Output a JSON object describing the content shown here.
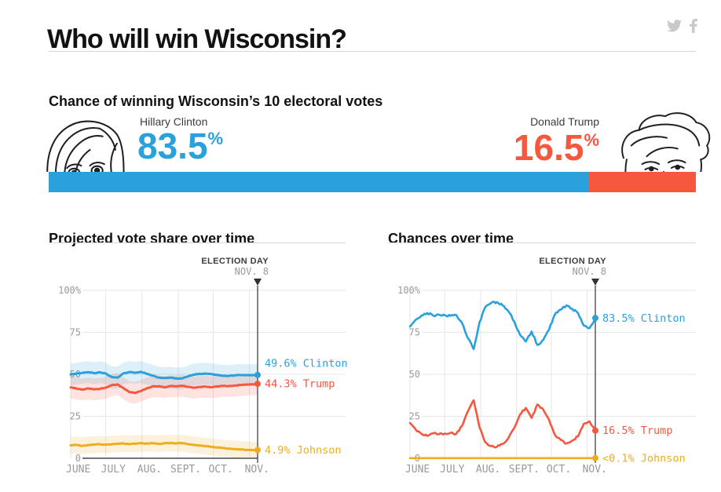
{
  "header": {
    "title": "Who will win Wisconsin?"
  },
  "social": {
    "twitter_icon": "twitter-bird",
    "facebook_icon": "facebook-f",
    "icon_color": "#c9c9c9"
  },
  "forecast": {
    "heading": "Chance of winning Wisconsin’s 10 electoral votes",
    "clinton": {
      "name": "Hillary Clinton",
      "chance": "83.5",
      "pct_sign": "%",
      "color": "#2aa1da"
    },
    "trump": {
      "name": "Donald Trump",
      "chance": "16.5",
      "pct_sign": "%",
      "color": "#f6573f"
    }
  },
  "colors": {
    "clinton": "#2aa1da",
    "trump": "#f6573f",
    "johnson": "#eead21",
    "grid": "#e6e6e6",
    "axis": "#222222",
    "tick": "#999999"
  },
  "chart_data": [
    {
      "type": "line",
      "title": "Projected vote share over time",
      "ylim": [
        0,
        100
      ],
      "y_tick_values": [
        100,
        75,
        50,
        25,
        0
      ],
      "y_tick_labels": [
        "100%",
        "75",
        "50",
        "25",
        "0"
      ],
      "x_tick_labels": [
        "JUNE",
        "JULY",
        "AUG.",
        "SEPT.",
        "OCT.",
        "NOV."
      ],
      "x_tick_days": [
        0,
        30,
        61,
        92,
        122,
        153
      ],
      "x_domain_days": [
        0,
        160
      ],
      "sample_step_days": 5,
      "grid": true,
      "annotation": {
        "line1": "ELECTION DAY",
        "line2": "NOV. 8"
      },
      "series": [
        {
          "name": "Clinton",
          "color": "#2aa1da",
          "band": 6.5,
          "end_label": "49.6% Clinton",
          "end_value": 49.6,
          "values": [
            49.9,
            50.4,
            50.9,
            51.3,
            50.7,
            51.2,
            50.5,
            48.3,
            48.0,
            50.5,
            51.3,
            50.9,
            51.5,
            50.3,
            49.2,
            48.1,
            47.7,
            48.0,
            47.6,
            47.5,
            48.6,
            49.8,
            50.3,
            50.4,
            50.1,
            49.6,
            49.1,
            49.0,
            49.4,
            49.6,
            49.5,
            49.5,
            49.6
          ]
        },
        {
          "name": "Trump",
          "color": "#f6573f",
          "band": 6.5,
          "end_label": "44.3% Trump",
          "end_value": 44.3,
          "values": [
            42.2,
            41.5,
            40.9,
            41.6,
            41.0,
            41.3,
            42.1,
            43.5,
            44.0,
            41.8,
            39.5,
            38.9,
            40.0,
            41.6,
            42.8,
            42.9,
            42.3,
            43.0,
            42.8,
            43.2,
            42.6,
            42.0,
            42.4,
            42.7,
            42.3,
            42.8,
            43.1,
            43.0,
            43.3,
            43.6,
            43.9,
            44.1,
            44.3
          ]
        },
        {
          "name": "Johnson",
          "color": "#eead21",
          "band": 5.0,
          "end_label": "4.9% Johnson",
          "end_value": 4.9,
          "values": [
            7.7,
            8.0,
            7.4,
            7.9,
            8.2,
            8.4,
            8.0,
            8.3,
            8.6,
            8.8,
            8.4,
            8.7,
            9.0,
            8.8,
            9.1,
            8.6,
            8.9,
            9.1,
            8.8,
            9.0,
            8.5,
            8.0,
            7.6,
            7.2,
            6.8,
            6.4,
            6.1,
            5.8,
            5.5,
            5.2,
            5.0,
            4.9,
            4.9
          ]
        }
      ]
    },
    {
      "type": "line",
      "title": "Chances over time",
      "ylim": [
        0,
        100
      ],
      "y_tick_values": [
        100,
        75,
        50,
        25,
        0
      ],
      "y_tick_labels": [
        "100%",
        "75",
        "50",
        "25",
        "0"
      ],
      "x_tick_labels": [
        "JUNE",
        "JULY",
        "AUG.",
        "SEPT.",
        "OCT.",
        "NOV."
      ],
      "x_tick_days": [
        0,
        30,
        61,
        92,
        122,
        153
      ],
      "x_domain_days": [
        0,
        160
      ],
      "sample_step_days": 5,
      "grid": true,
      "annotation": {
        "line1": "ELECTION DAY",
        "line2": "NOV. 8"
      },
      "series": [
        {
          "name": "Clinton",
          "color": "#2aa1da",
          "band": 0,
          "end_label": "83.5% Clinton",
          "end_value": 83.5,
          "values": [
            78.5,
            82.5,
            85.0,
            86.5,
            85.0,
            85.5,
            85.2,
            84.8,
            85.3,
            80.5,
            71.5,
            65.0,
            81.0,
            90.0,
            92.5,
            93.0,
            91.0,
            87.5,
            81.5,
            73.5,
            69.5,
            75.5,
            67.5,
            70.5,
            76.5,
            85.5,
            88.5,
            91.0,
            89.0,
            86.5,
            79.0,
            77.5,
            83.5
          ]
        },
        {
          "name": "Trump",
          "color": "#f6573f",
          "band": 0,
          "end_label": "16.5% Trump",
          "end_value": 16.5,
          "values": [
            21.0,
            17.0,
            14.5,
            13.3,
            14.8,
            14.3,
            14.7,
            15.1,
            14.6,
            19.4,
            28.0,
            34.5,
            18.5,
            9.5,
            7.2,
            6.8,
            8.5,
            12.0,
            18.0,
            26.0,
            30.0,
            24.0,
            32.0,
            29.0,
            23.0,
            14.0,
            11.0,
            8.8,
            10.5,
            13.0,
            20.5,
            22.0,
            16.5
          ]
        },
        {
          "name": "Johnson",
          "color": "#eead21",
          "band": 0,
          "end_label": "<0.1% Johnson",
          "end_value": 0.1,
          "values": [
            0.1,
            0.1,
            0.1,
            0.1,
            0.1,
            0.1,
            0.1,
            0.1,
            0.1,
            0.1,
            0.1,
            0.1,
            0.1,
            0.1,
            0.1,
            0.1,
            0.1,
            0.1,
            0.1,
            0.1,
            0.1,
            0.1,
            0.1,
            0.1,
            0.1,
            0.1,
            0.1,
            0.1,
            0.1,
            0.1,
            0.1,
            0.1,
            0.1
          ]
        }
      ]
    }
  ]
}
